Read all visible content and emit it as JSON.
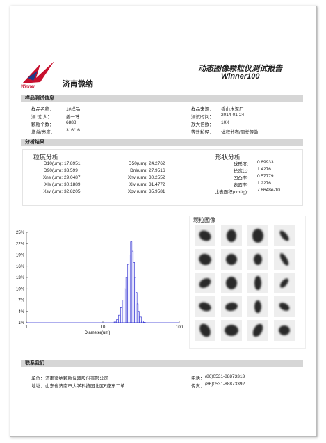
{
  "header": {
    "logo_text": "Winner",
    "company": "济南微纳",
    "title": "动态图像颗粒仪测试报告",
    "model": "Winner100"
  },
  "sample_info": {
    "heading": "样品测试信息",
    "left": [
      {
        "label": "样品名称：",
        "value": "1#样品"
      },
      {
        "label": "测 试 人：",
        "value": "姜一博"
      },
      {
        "label": "颗粒个数：",
        "value": "6888"
      },
      {
        "label": "增益/亮度：",
        "value": "316/16"
      }
    ],
    "right": [
      {
        "label": "样品来源：",
        "value": "香山水泥厂"
      },
      {
        "label": "测试时间：",
        "value": "2014-01-24"
      },
      {
        "label": "放大倍数：",
        "value": "10X"
      },
      {
        "label": "等效粒径：",
        "value": "体积分布/周长等效"
      }
    ]
  },
  "results": {
    "heading": "分析结果",
    "size": {
      "heading": "粒度分析",
      "items": [
        {
          "label": "D10(um):",
          "value": "17.8951"
        },
        {
          "label": "D50(um):",
          "value": "24.2762"
        },
        {
          "label": "D90(um):",
          "value": "33.599"
        },
        {
          "label": "Dnl(um):",
          "value": "27.9516"
        },
        {
          "label": "Xns (um):",
          "value": "29.0487"
        },
        {
          "label": "Xnv (um):",
          "value": "30.2552"
        },
        {
          "label": "Xls (um):",
          "value": "30.1889"
        },
        {
          "label": "Xlv (um):",
          "value": "31.4772"
        },
        {
          "label": "Xsv (um):",
          "value": "32.8205"
        },
        {
          "label": "Xpv (um):",
          "value": "35.9581"
        }
      ]
    },
    "shape": {
      "heading": "形状分析",
      "items": [
        {
          "label": "球形度:",
          "value": "0.89933"
        },
        {
          "label": "长宽比:",
          "value": "1.4276"
        },
        {
          "label": "凹凸率:",
          "value": "0.57779"
        },
        {
          "label": "表面率:",
          "value": "1.2276"
        },
        {
          "label": "比表面积(cm²/g):",
          "value": "7.8648e-10"
        }
      ]
    }
  },
  "chart_data": {
    "type": "histogram",
    "xlabel": "Diameter(um)",
    "color": "#2a2ad0",
    "x_log": true,
    "bins": [
      14,
      15,
      16,
      17,
      18,
      19,
      20,
      21,
      22,
      23,
      24,
      25,
      26,
      27,
      28,
      29,
      30,
      32,
      34,
      36
    ],
    "values": [
      1.2,
      1.8,
      3,
      5,
      7,
      10,
      13,
      16.5,
      19,
      22.5,
      20,
      17,
      13,
      9,
      6,
      4,
      2.5,
      1.5,
      1.1
    ],
    "xlim": [
      1,
      100
    ],
    "xticks": [
      1,
      10,
      100
    ],
    "ylim": [
      1,
      25
    ],
    "yticks": [
      {
        "value": 1,
        "label": "1%"
      },
      {
        "value": 4,
        "label": "4%"
      },
      {
        "value": 7,
        "label": "7%"
      },
      {
        "value": 10,
        "label": "10%"
      },
      {
        "value": 13,
        "label": "13%"
      },
      {
        "value": 16,
        "label": "16%"
      },
      {
        "value": 19,
        "label": "19%"
      },
      {
        "value": 22,
        "label": "22%"
      },
      {
        "value": 25,
        "label": "25%"
      }
    ]
  },
  "images": {
    "heading": "颗粒图像"
  },
  "contact": {
    "heading": "联系我们",
    "left": [
      {
        "label": "单位：",
        "value": "济南微纳颗粒仪器股份有限公司"
      },
      {
        "label": "地址：",
        "value": "山东省济南市大学科技园北区F座东二单"
      }
    ],
    "right": [
      {
        "label": "电话：",
        "value": "(86)0531-88873313"
      },
      {
        "label": "传真：",
        "value": "(86)0531-88873392"
      }
    ]
  }
}
